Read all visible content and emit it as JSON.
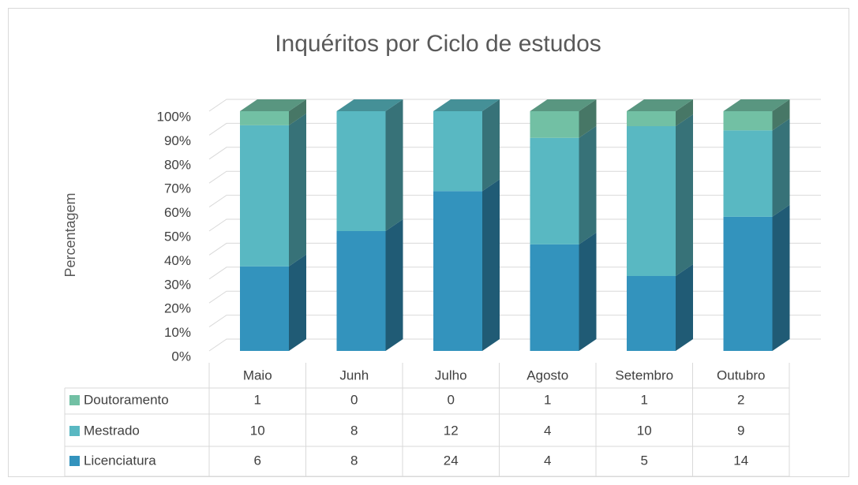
{
  "chart_data": {
    "type": "bar",
    "stacking": "percent",
    "title": "Inquéritos por Ciclo de estudos",
    "ylabel": "Percentagem",
    "categories": [
      "Maio",
      "Junh",
      "Julho",
      "Agosto",
      "Setembro",
      "Outubro"
    ],
    "series": [
      {
        "name": "Doutoramento",
        "color": "#72c0a4",
        "values": [
          1,
          0,
          0,
          1,
          1,
          2
        ]
      },
      {
        "name": "Mestrado",
        "color": "#59b8c2",
        "values": [
          10,
          8,
          12,
          4,
          10,
          9
        ]
      },
      {
        "name": "Licenciatura",
        "color": "#3393bd",
        "values": [
          6,
          8,
          24,
          4,
          5,
          14
        ]
      }
    ],
    "ylim": [
      0,
      100
    ],
    "yticks": [
      {
        "value": 0,
        "label": "0%"
      },
      {
        "value": 10,
        "label": "10%"
      },
      {
        "value": 20,
        "label": "20%"
      },
      {
        "value": 30,
        "label": "30%"
      },
      {
        "value": 40,
        "label": "40%"
      },
      {
        "value": 50,
        "label": "50%"
      },
      {
        "value": 60,
        "label": "60%"
      },
      {
        "value": 70,
        "label": "70%"
      },
      {
        "value": 80,
        "label": "80%"
      },
      {
        "value": 90,
        "label": "90%"
      },
      {
        "value": 100,
        "label": "100%"
      }
    ],
    "grid": true,
    "data_table": true
  }
}
